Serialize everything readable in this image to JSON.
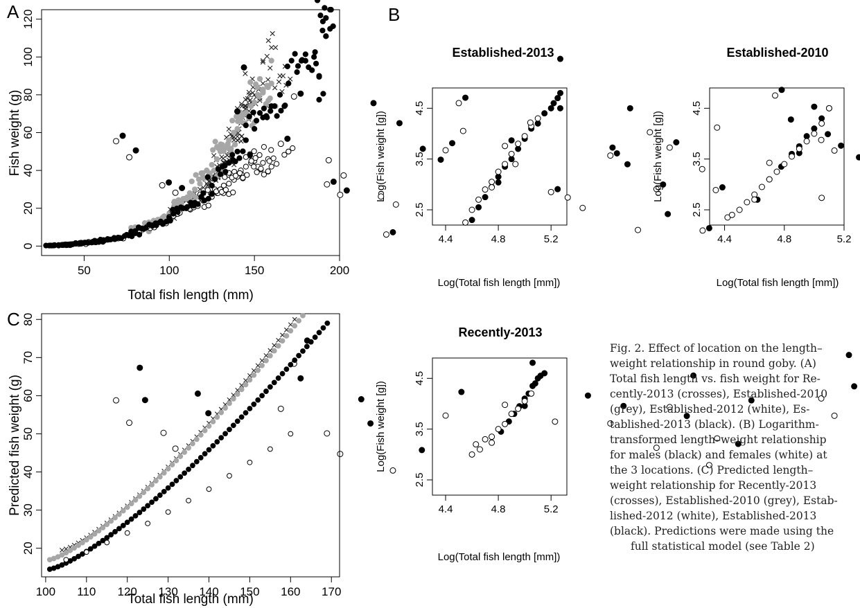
{
  "panels": {
    "A": {
      "letter": "A",
      "chart_data": {
        "type": "scatter",
        "xlabel": "Total fish length (mm)",
        "ylabel": "Fish weight (g)",
        "xlim": [
          25,
          200
        ],
        "ylim": [
          -5,
          125
        ],
        "xticks": [
          50,
          100,
          150,
          200
        ],
        "yticks": [
          0,
          20,
          40,
          60,
          80,
          100,
          120
        ],
        "series": [
          {
            "style": "cross",
            "x": [
              93,
              100,
              105,
              110,
              112,
              118,
              120,
              122,
              125,
              127,
              128,
              130,
              132,
              134,
              135,
              136,
              138,
              140,
              141,
              142,
              143,
              144,
              145,
              146,
              147,
              148,
              150,
              152,
              155,
              158,
              160,
              165,
              168
            ],
            "y": [
              13,
              17,
              20,
              24,
              26,
              30,
              28,
              33,
              36,
              38,
              42,
              40,
              44,
              48,
              50,
              52,
              56,
              58,
              62,
              65,
              68,
              70,
              74,
              78,
              80,
              76,
              80,
              84,
              86,
              88,
              105,
              90,
              95
            ]
          },
          {
            "style": "grey",
            "x": [
              80,
              85,
              88,
              92,
              96,
              100,
              103,
              106,
              110,
              112,
              115,
              118,
              120,
              122,
              125,
              128,
              130,
              132,
              135,
              138,
              140,
              142,
              145,
              148,
              150,
              152,
              155,
              158,
              160
            ],
            "y": [
              10,
              9,
              11,
              13,
              15,
              17,
              20,
              22,
              25,
              28,
              30,
              33,
              36,
              40,
              43,
              46,
              50,
              52,
              56,
              60,
              62,
              66,
              70,
              74,
              76,
              80,
              82,
              84,
              86
            ]
          },
          {
            "style": "white",
            "x": [
              40,
              48,
              55,
              70,
              80,
              90,
              100,
              105,
              110,
              115,
              120,
              125,
              128,
              130,
              132,
              135,
              138,
              140,
              142,
              145,
              148,
              150,
              152,
              155,
              158,
              160,
              170
            ],
            "y": [
              0.5,
              1.2,
              2,
              4,
              7,
              11,
              14,
              17,
              20,
              22,
              24,
              26,
              28,
              30,
              32,
              33,
              35,
              38,
              40,
              42,
              44,
              45,
              42,
              44,
              46,
              42,
              50
            ]
          },
          {
            "style": "black",
            "x": [
              30,
              32,
              35,
              38,
              40,
              42,
              45,
              48,
              50,
              55,
              58,
              62,
              65,
              70,
              75,
              80,
              85,
              90,
              95,
              100,
              105,
              110,
              115,
              120,
              125,
              130,
              135,
              140,
              145,
              150,
              155,
              160,
              165,
              170,
              175,
              180,
              185,
              188,
              190,
              192,
              195
            ],
            "y": [
              0.3,
              0.3,
              0.5,
              0.6,
              0.8,
              1,
              1.2,
              1.5,
              1.8,
              2,
              2.5,
              3,
              3.5,
              4.5,
              6,
              7,
              9,
              11,
              13,
              15,
              18,
              20,
              23,
              28,
              32,
              38,
              44,
              50,
              56,
              62,
              68,
              74,
              80,
              86,
              92,
              98,
              100,
              90,
              114,
              111,
              125
            ]
          }
        ]
      }
    },
    "B": {
      "letter": "B",
      "xlabel": "Log(Total fish length [mm])",
      "ylabel": "Log(Fish weight [g])",
      "xticks": [
        "4.4",
        "4.8",
        "5.2"
      ],
      "yticks": [
        "2.5",
        "3.5",
        "4.5"
      ],
      "charts": [
        {
          "title": "Established-2013",
          "chart_data": {
            "type": "scatter",
            "xlim": [
              4.3,
              5.32
            ],
            "ylim": [
              2.2,
              4.9
            ],
            "series": [
              {
                "style": "black",
                "x": [
                  4.6,
                  4.65,
                  4.7,
                  4.75,
                  4.8,
                  4.85,
                  4.9,
                  4.95,
                  5.0,
                  5.05,
                  5.1,
                  5.15,
                  5.2,
                  5.22,
                  5.25,
                  5.27
                ],
                "y": [
                  2.3,
                  2.55,
                  2.75,
                  2.95,
                  3.15,
                  3.35,
                  3.5,
                  3.7,
                  3.9,
                  4.1,
                  4.2,
                  4.4,
                  4.5,
                  4.6,
                  4.7,
                  4.8
                ]
              },
              {
                "style": "white",
                "x": [
                  4.55,
                  4.6,
                  4.65,
                  4.7,
                  4.75,
                  4.8,
                  4.85,
                  4.9,
                  4.95,
                  5.0,
                  5.05,
                  5.1
                ],
                "y": [
                  2.25,
                  2.5,
                  2.7,
                  2.9,
                  3.05,
                  3.25,
                  3.4,
                  3.6,
                  3.8,
                  3.95,
                  4.15,
                  4.3
                ]
              }
            ]
          }
        },
        {
          "title": "Established-2010",
          "chart_data": {
            "type": "scatter",
            "xlim": [
              4.3,
              5.2
            ],
            "ylim": [
              2.2,
              4.9
            ],
            "series": [
              {
                "style": "black",
                "x": [
                  4.62,
                  4.7,
                  4.78,
                  4.85,
                  4.9,
                  4.95,
                  5.0,
                  5.05,
                  5.1
                ],
                "y": [
                  2.7,
                  3.1,
                  3.35,
                  3.6,
                  3.75,
                  3.95,
                  4.1,
                  4.3,
                  4.5
                ]
              },
              {
                "style": "white",
                "x": [
                  4.42,
                  4.45,
                  4.5,
                  4.55,
                  4.6,
                  4.65,
                  4.7,
                  4.75,
                  4.8,
                  4.85,
                  4.9,
                  4.95,
                  5.0,
                  5.05,
                  5.1
                ],
                "y": [
                  2.35,
                  2.4,
                  2.5,
                  2.65,
                  2.8,
                  2.95,
                  3.1,
                  3.25,
                  3.4,
                  3.55,
                  3.7,
                  3.85,
                  4.0,
                  4.2,
                  4.5
                ]
              }
            ]
          }
        },
        {
          "title": "Recently-2013",
          "chart_data": {
            "type": "scatter",
            "xlim": [
              4.3,
              5.32
            ],
            "ylim": [
              2.2,
              4.9
            ],
            "series": [
              {
                "style": "black",
                "x": [
                  4.82,
                  4.88,
                  4.92,
                  4.96,
                  5.0,
                  5.03,
                  5.06,
                  5.08,
                  5.1,
                  5.12,
                  5.15
                ],
                "y": [
                  3.45,
                  3.65,
                  3.8,
                  3.95,
                  4.1,
                  4.2,
                  4.35,
                  4.4,
                  4.5,
                  4.55,
                  4.6
                ]
              },
              {
                "style": "white",
                "x": [
                  4.6,
                  4.63,
                  4.66,
                  4.7,
                  4.75,
                  4.8,
                  4.85,
                  4.9,
                  4.95,
                  5.0,
                  5.05
                ],
                "y": [
                  3.0,
                  3.2,
                  3.1,
                  3.3,
                  3.35,
                  3.5,
                  3.6,
                  3.8,
                  3.9,
                  4.05,
                  4.2
                ]
              }
            ]
          }
        }
      ]
    },
    "C": {
      "letter": "C",
      "chart_data": {
        "type": "scatter",
        "xlabel": "Total fish length (mm)",
        "ylabel": "Predicted fish weight (g)",
        "xlim": [
          99,
          172
        ],
        "ylim": [
          12.5,
          81.5
        ],
        "xticks": [
          100,
          110,
          120,
          130,
          140,
          150,
          160,
          170
        ],
        "yticks": [
          20,
          30,
          40,
          50,
          60,
          70,
          80
        ],
        "series": [
          {
            "style": "cross",
            "x_range": [
              104,
              161
            ],
            "x_step": 1,
            "y_start": 19.5,
            "y_end": 80
          },
          {
            "style": "grey",
            "x_range": [
              101,
              163
            ],
            "x_step": 1,
            "y_start": 17,
            "y_end": 81
          },
          {
            "style": "black",
            "x_range": [
              101,
              169
            ],
            "x_step": 1,
            "y_start": 14.5,
            "y_end": 79
          },
          {
            "style": "white",
            "x": [
              105,
              110,
              115,
              120,
              125,
              130,
              135,
              140,
              145,
              150,
              155,
              160
            ],
            "y": [
              17,
              19,
              21.5,
              24,
              26.5,
              29.5,
              32.5,
              35.5,
              39,
              42.5,
              46,
              50
            ]
          }
        ]
      }
    }
  },
  "caption": {
    "lines": [
      "Fig. 2. Effect of location on the length–",
      "weight relationship in round goby. (A)",
      "Total fish length vs. fish weight for Re-",
      "cently-2013 (crosses), Established-2010",
      "(grey), Established-2012 (white), Es-",
      "tablished-2013 (black). (B) Logarithm-",
      "transformed length–weight relationship",
      "for males (black) and females (white) at",
      "the 3 locations. (C) Predicted length–",
      "weight relationship for Recently-2013",
      "(crosses), Established-2010 (grey), Estab-",
      "lished-2012 (white), Established-2013",
      "(black). Predictions were made using the",
      "full statistical model (see Table 2)"
    ]
  }
}
